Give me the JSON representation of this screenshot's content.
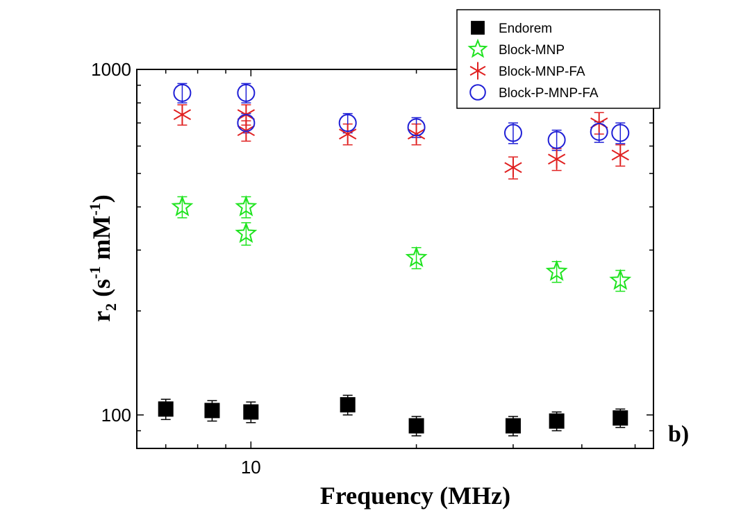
{
  "chart_data": {
    "type": "scatter",
    "title": "",
    "xlabel": "Frequency (MHz)",
    "ylabel_parts": {
      "main": "r",
      "sub": "2",
      "open": " (s",
      "sup1": "-1",
      "mid": " mM",
      "sup2": "-1",
      "close": ")"
    },
    "x_scale": "log",
    "y_scale": "log",
    "xlim": [
      6.2,
      54
    ],
    "ylim": [
      80,
      1000
    ],
    "x_ticks": [
      {
        "value": 10,
        "label": "10"
      }
    ],
    "y_ticks": [
      {
        "value": 100,
        "label": "100"
      },
      {
        "value": 1000,
        "label": "1000"
      }
    ],
    "panel_label": "b)",
    "legend_position": "top-right",
    "series": [
      {
        "name": "Endorem",
        "marker": "square",
        "color": "#000000",
        "points": [
          {
            "x": 7.0,
            "y": 104,
            "err": 7
          },
          {
            "x": 8.5,
            "y": 103,
            "err": 7
          },
          {
            "x": 10.0,
            "y": 102,
            "err": 7
          },
          {
            "x": 15.0,
            "y": 107,
            "err": 7
          },
          {
            "x": 20.0,
            "y": 93,
            "err": 6
          },
          {
            "x": 30.0,
            "y": 93,
            "err": 6
          },
          {
            "x": 36.0,
            "y": 96,
            "err": 6
          },
          {
            "x": 47.0,
            "y": 98,
            "err": 6
          }
        ]
      },
      {
        "name": "Block-MNP",
        "marker": "star",
        "color": "#1fe31f",
        "points": [
          {
            "x": 7.5,
            "y": 400,
            "err": 28
          },
          {
            "x": 9.8,
            "y": 400,
            "err": 28
          },
          {
            "x": 9.8,
            "y": 335,
            "err": 25
          },
          {
            "x": 20.0,
            "y": 285,
            "err": 20
          },
          {
            "x": 36.0,
            "y": 260,
            "err": 18
          },
          {
            "x": 47.0,
            "y": 245,
            "err": 17
          }
        ]
      },
      {
        "name": "Block-MNP-FA",
        "marker": "asterisk",
        "color": "#e02020",
        "points": [
          {
            "x": 7.5,
            "y": 740,
            "err": 50
          },
          {
            "x": 9.8,
            "y": 740,
            "err": 50
          },
          {
            "x": 9.8,
            "y": 665,
            "err": 45
          },
          {
            "x": 15.0,
            "y": 650,
            "err": 45
          },
          {
            "x": 20.0,
            "y": 650,
            "err": 45
          },
          {
            "x": 30.0,
            "y": 520,
            "err": 38
          },
          {
            "x": 36.0,
            "y": 550,
            "err": 40
          },
          {
            "x": 43.0,
            "y": 700,
            "err": 50
          },
          {
            "x": 47.0,
            "y": 565,
            "err": 40
          }
        ]
      },
      {
        "name": "Block-P-MNP-FA",
        "marker": "circle",
        "color": "#1f1fd6",
        "points": [
          {
            "x": 7.5,
            "y": 855,
            "err": 55
          },
          {
            "x": 9.8,
            "y": 855,
            "err": 55
          },
          {
            "x": 9.8,
            "y": 700,
            "err": 45
          },
          {
            "x": 15.0,
            "y": 700,
            "err": 45
          },
          {
            "x": 20.0,
            "y": 680,
            "err": 45
          },
          {
            "x": 30.0,
            "y": 655,
            "err": 45
          },
          {
            "x": 36.0,
            "y": 625,
            "err": 42
          },
          {
            "x": 43.0,
            "y": 660,
            "err": 45
          },
          {
            "x": 47.0,
            "y": 655,
            "err": 45
          }
        ]
      }
    ]
  }
}
